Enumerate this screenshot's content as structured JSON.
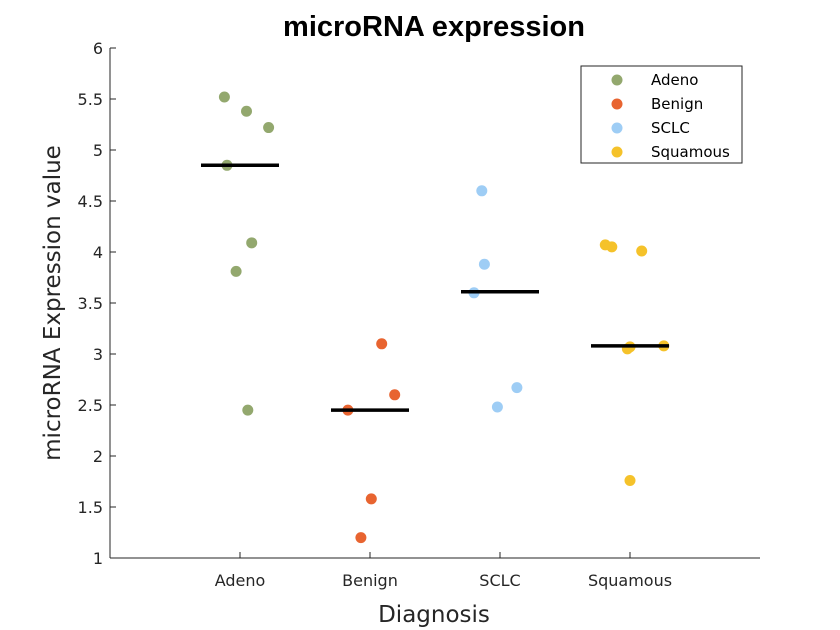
{
  "chart_data": {
    "type": "scatter",
    "title": "microRNA expression",
    "xlabel": "Diagnosis",
    "ylabel": "microRNA Expression value",
    "categories": [
      "Adeno",
      "Benign",
      "SCLC",
      "Squamous"
    ],
    "ylim": [
      1,
      6
    ],
    "yticks": [
      "1",
      "1.5",
      "2",
      "2.5",
      "3",
      "3.5",
      "4",
      "4.5",
      "5",
      "5.5",
      "6"
    ],
    "grid": false,
    "legend_position": "top-right",
    "series": [
      {
        "name": "Adeno",
        "color": "#93a86e",
        "points": [
          {
            "x": -0.12,
            "y": 5.52
          },
          {
            "x": 0.05,
            "y": 5.38
          },
          {
            "x": 0.22,
            "y": 5.22
          },
          {
            "x": -0.1,
            "y": 4.85
          },
          {
            "x": 0.09,
            "y": 4.09
          },
          {
            "x": -0.03,
            "y": 3.81
          },
          {
            "x": 0.06,
            "y": 2.45
          }
        ],
        "median": 4.85
      },
      {
        "name": "Benign",
        "color": "#e86430",
        "points": [
          {
            "x": 0.09,
            "y": 3.1
          },
          {
            "x": 0.19,
            "y": 2.6
          },
          {
            "x": -0.17,
            "y": 2.45
          },
          {
            "x": 0.01,
            "y": 1.58
          },
          {
            "x": -0.07,
            "y": 1.2
          }
        ],
        "median": 2.45
      },
      {
        "name": "SCLC",
        "color": "#9ecdf5",
        "points": [
          {
            "x": -0.14,
            "y": 4.6
          },
          {
            "x": -0.12,
            "y": 3.88
          },
          {
            "x": -0.2,
            "y": 3.6
          },
          {
            "x": 0.13,
            "y": 2.67
          },
          {
            "x": -0.02,
            "y": 2.48
          }
        ],
        "median": 3.61
      },
      {
        "name": "Squamous",
        "color": "#f5c22a",
        "points": [
          {
            "x": -0.19,
            "y": 4.07
          },
          {
            "x": -0.14,
            "y": 4.05
          },
          {
            "x": 0.09,
            "y": 4.01
          },
          {
            "x": 0.0,
            "y": 3.07
          },
          {
            "x": -0.02,
            "y": 3.05
          },
          {
            "x": 0.26,
            "y": 3.08
          },
          {
            "x": 0.0,
            "y": 1.76
          }
        ],
        "median": 3.08
      }
    ]
  }
}
